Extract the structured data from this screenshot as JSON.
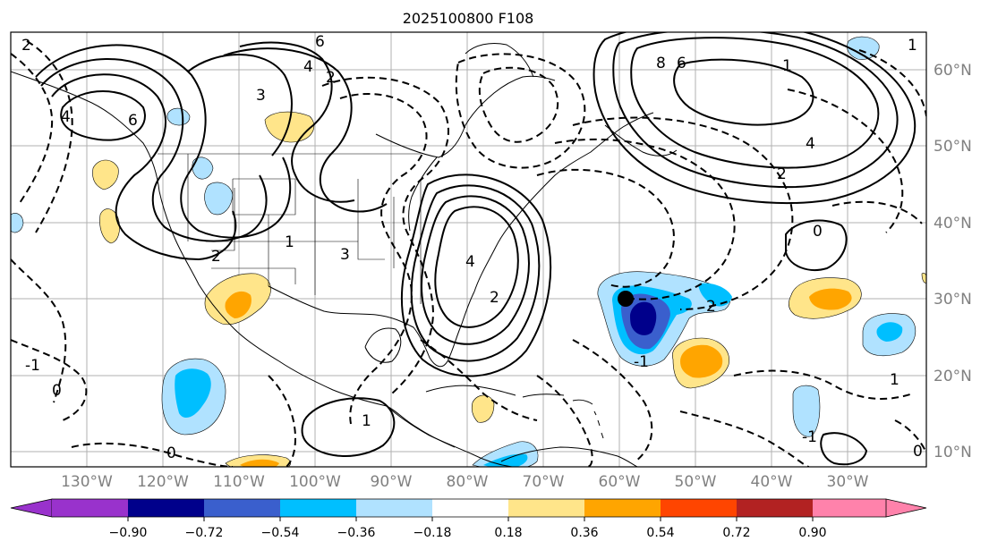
{
  "title": "2025100800 F108",
  "lon_labels": [
    "130°W",
    "120°W",
    "110°W",
    "100°W",
    "90°W",
    "80°W",
    "70°W",
    "60°W",
    "50°W",
    "40°W",
    "30°W"
  ],
  "lat_labels": [
    "60°N",
    "50°N",
    "40°N",
    "30°N",
    "20°N",
    "10°N"
  ],
  "colorbar": {
    "ticks": [
      "−0.90",
      "−0.72",
      "−0.54",
      "−0.36",
      "−0.18",
      "0.18",
      "0.36",
      "0.54",
      "0.72",
      "0.90"
    ],
    "colors": [
      "#9932cc",
      "#00008b",
      "#3a5fcd",
      "#00bfff",
      "#b0e2ff",
      "#ffffff",
      "#ffe58a",
      "#ffa500",
      "#ff4500",
      "#b22222",
      "#ff82ab"
    ]
  },
  "contour_labels": {
    "pos": [
      "2",
      "4",
      "6",
      "3",
      "2",
      "1",
      "2",
      "4",
      "3",
      "2",
      "1",
      "6",
      "8",
      "6",
      "4",
      "2",
      "1",
      "4",
      "2",
      "1",
      "0",
      "1"
    ],
    "neg": [
      "-1",
      "0",
      "-1",
      "0",
      "-1",
      "0"
    ]
  },
  "marker_label": "storm center"
}
